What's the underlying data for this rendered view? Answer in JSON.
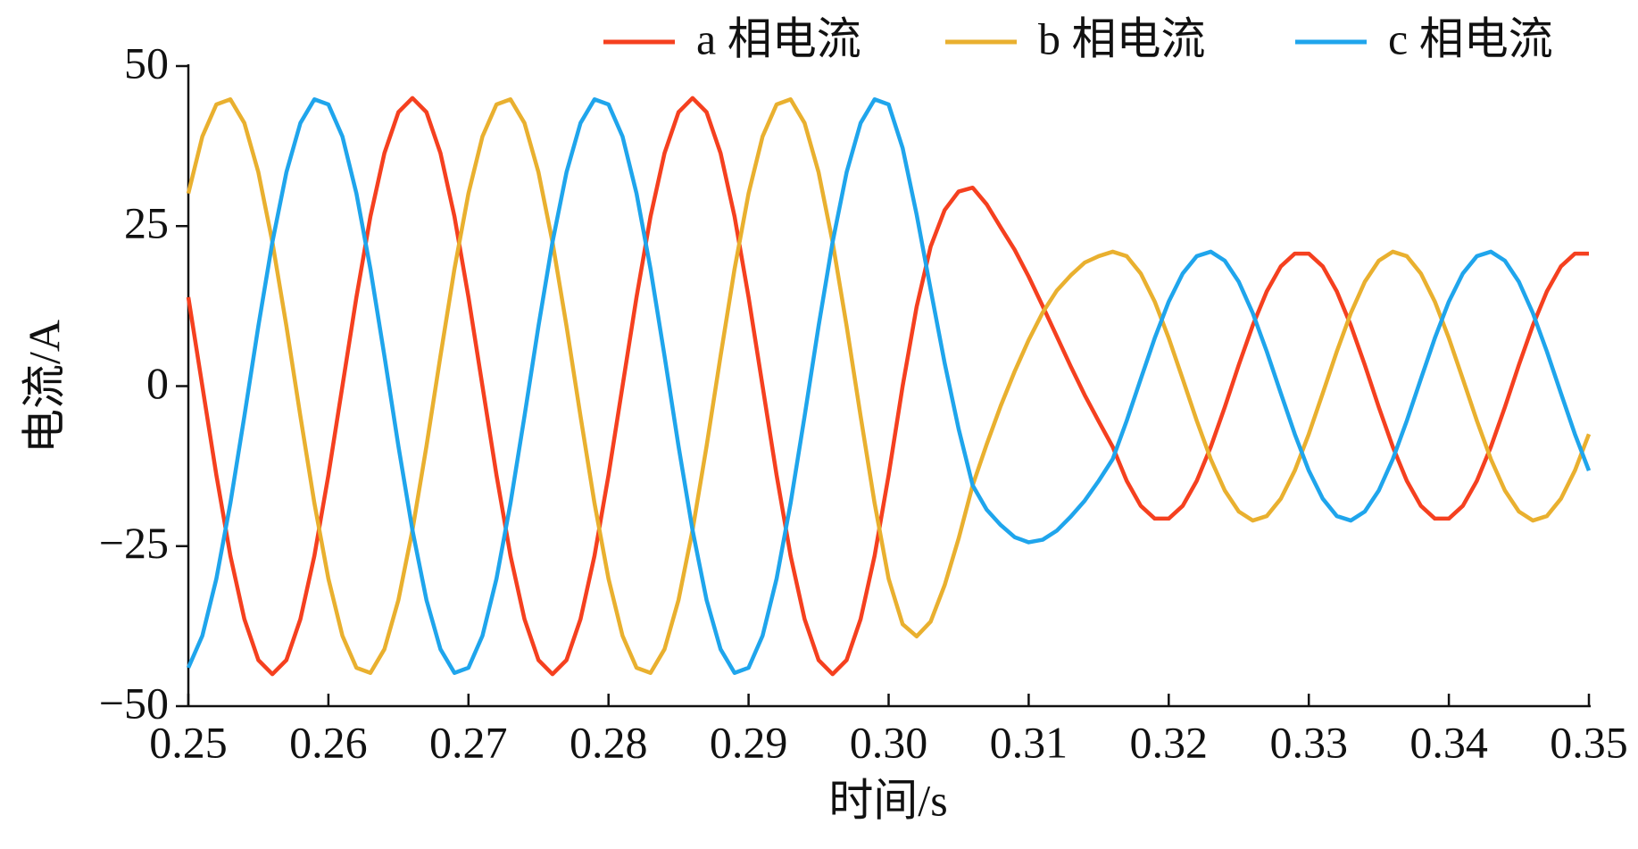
{
  "chart_data": {
    "type": "line",
    "x_label": "时间/s",
    "y_label": "电流/A",
    "x": [
      0.25,
      0.251,
      0.252,
      0.253,
      0.254,
      0.255,
      0.256,
      0.257,
      0.258,
      0.259,
      0.26,
      0.261,
      0.262,
      0.263,
      0.264,
      0.265,
      0.266,
      0.267,
      0.268,
      0.269,
      0.27,
      0.271,
      0.272,
      0.273,
      0.274,
      0.275,
      0.276,
      0.277,
      0.278,
      0.279,
      0.28,
      0.281,
      0.282,
      0.283,
      0.284,
      0.285,
      0.286,
      0.287,
      0.288,
      0.289,
      0.29,
      0.291,
      0.292,
      0.293,
      0.294,
      0.295,
      0.296,
      0.297,
      0.298,
      0.299,
      0.3,
      0.301,
      0.302,
      0.303,
      0.304,
      0.305,
      0.306,
      0.307,
      0.308,
      0.309,
      0.31,
      0.311,
      0.312,
      0.313,
      0.314,
      0.315,
      0.316,
      0.317,
      0.318,
      0.319,
      0.32,
      0.321,
      0.322,
      0.323,
      0.324,
      0.325,
      0.326,
      0.327,
      0.328,
      0.329,
      0.33,
      0.331,
      0.332,
      0.333,
      0.334,
      0.335,
      0.336,
      0.337,
      0.338,
      0.339,
      0.34,
      0.341,
      0.342,
      0.343,
      0.344,
      0.345,
      0.346,
      0.347,
      0.348,
      0.349,
      0.35
    ],
    "series": [
      {
        "name": "a 相电流",
        "color": "#f5401f",
        "values": [
          13.9,
          0,
          -13.9,
          -26.5,
          -36.4,
          -42.8,
          -45,
          -42.8,
          -36.4,
          -26.5,
          -13.9,
          0,
          13.9,
          26.5,
          36.4,
          42.8,
          45,
          42.8,
          36.4,
          26.5,
          13.9,
          0,
          -13.9,
          -26.5,
          -36.4,
          -42.8,
          -45,
          -42.8,
          -36.4,
          -26.5,
          -13.9,
          0,
          13.9,
          26.5,
          36.4,
          42.8,
          45,
          42.8,
          36.4,
          26.5,
          13.9,
          0,
          -13.9,
          -26.5,
          -36.4,
          -42.8,
          -45,
          -42.8,
          -36.4,
          -26.5,
          -13.9,
          0,
          12.4,
          21.8,
          27.5,
          30.4,
          31,
          28.4,
          24.8,
          21.3,
          17.1,
          12.5,
          7.8,
          3.1,
          -1.4,
          -5.5,
          -9.5,
          -14.8,
          -18.7,
          -20.7,
          -20.7,
          -18.7,
          -14.8,
          -9.5,
          -3.3,
          3.3,
          9.5,
          14.8,
          18.7,
          20.7,
          20.7,
          18.7,
          14.8,
          9.5,
          3.3,
          -3.3,
          -9.5,
          -14.8,
          -18.7,
          -20.7,
          -20.7,
          -18.7,
          -14.8,
          -9.5,
          -3.3,
          3.3,
          9.5,
          14.8,
          18.7,
          20.7,
          20.7
        ]
      },
      {
        "name": "b 相电流",
        "color": "#e9b02f",
        "values": [
          30.1,
          39.0,
          44.0,
          44.8,
          41.1,
          33.4,
          22.5,
          9.4,
          -4.7,
          -18.3,
          -30.1,
          -39.0,
          -44.0,
          -44.8,
          -41.1,
          -33.4,
          -22.5,
          -9.4,
          4.7,
          18.3,
          30.1,
          39.0,
          44.0,
          44.8,
          41.1,
          33.4,
          22.5,
          9.4,
          -4.7,
          -18.3,
          -30.1,
          -39.0,
          -44.0,
          -44.8,
          -41.1,
          -33.4,
          -22.5,
          -9.4,
          4.7,
          18.3,
          30.1,
          39.0,
          44.0,
          44.8,
          41.1,
          33.4,
          22.5,
          9.4,
          -4.7,
          -18.3,
          -30.1,
          -37.2,
          -39.1,
          -36.8,
          -31.1,
          -23.8,
          -15.5,
          -9.1,
          -3.1,
          2.3,
          7.2,
          11.5,
          14.9,
          17.3,
          19.3,
          20.3,
          21.0,
          20.3,
          17.6,
          13.2,
          7.5,
          1.1,
          -5.4,
          -11.4,
          -16.3,
          -19.6,
          -21.0,
          -20.3,
          -17.6,
          -13.2,
          -7.5,
          -1.1,
          5.4,
          11.4,
          16.3,
          19.6,
          21.0,
          20.3,
          17.6,
          13.2,
          7.5,
          1.1,
          -5.4,
          -11.4,
          -16.3,
          -19.6,
          -21.0,
          -20.3,
          -17.6,
          -13.2,
          -7.5
        ]
      },
      {
        "name": "c 相电流",
        "color": "#1fa5ec",
        "values": [
          -44.0,
          -39.0,
          -30.1,
          -18.3,
          -4.7,
          9.4,
          22.5,
          33.4,
          41.1,
          44.8,
          44.0,
          39.0,
          30.1,
          18.3,
          4.7,
          -9.4,
          -22.5,
          -33.4,
          -41.1,
          -44.8,
          -44.0,
          -39.0,
          -30.1,
          -18.3,
          -4.7,
          9.4,
          22.5,
          33.4,
          41.1,
          44.8,
          44.0,
          39.0,
          30.1,
          18.3,
          4.7,
          -9.4,
          -22.5,
          -33.4,
          -41.1,
          -44.8,
          -44.0,
          -39.0,
          -30.1,
          -18.3,
          -4.7,
          9.4,
          22.5,
          33.4,
          41.1,
          44.8,
          44.0,
          37.2,
          26.8,
          15.1,
          3.6,
          -6.7,
          -15.5,
          -19.3,
          -21.7,
          -23.6,
          -24.4,
          -24.0,
          -22.6,
          -20.4,
          -17.9,
          -14.8,
          -11.4,
          -5.4,
          1.1,
          7.5,
          13.2,
          17.6,
          20.3,
          21.0,
          19.6,
          16.3,
          11.4,
          5.4,
          -1.1,
          -7.5,
          -13.2,
          -17.6,
          -20.3,
          -21.0,
          -19.6,
          -16.3,
          -11.4,
          -5.4,
          1.1,
          7.5,
          13.2,
          17.6,
          20.3,
          21.0,
          19.6,
          16.3,
          11.4,
          5.4,
          -1.1,
          -7.5,
          -13.2
        ]
      }
    ],
    "xlim": [
      0.25,
      0.35
    ],
    "xticks": [
      0.25,
      0.26,
      0.27,
      0.28,
      0.29,
      {
        "value": 0.3,
        "label": "0.30"
      },
      0.31,
      0.32,
      0.33,
      0.34,
      0.35
    ],
    "ylim": [
      -50,
      50
    ],
    "yticks": [
      {
        "value": -50,
        "label": "−50"
      },
      {
        "value": -25,
        "label": "−25"
      },
      0,
      25,
      50
    ]
  }
}
